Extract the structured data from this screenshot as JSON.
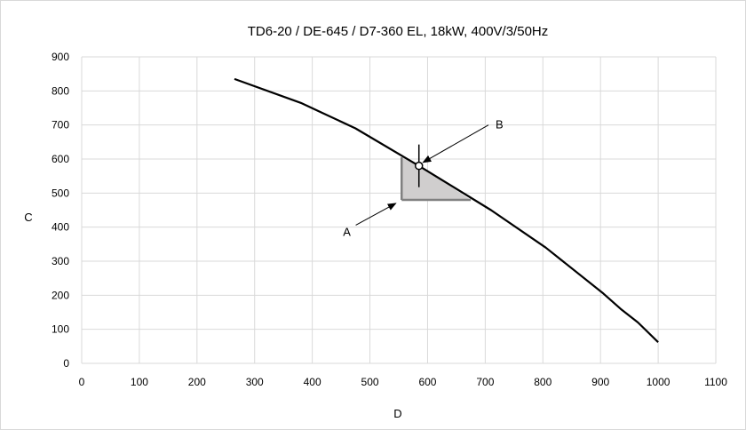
{
  "chart_data": {
    "type": "line",
    "title": "TD6-20 / DE-645 / D7-360 EL, 18kW, 400V/3/50Hz",
    "xlabel": "D",
    "ylabel": "C",
    "xlim": [
      0,
      1100
    ],
    "ylim": [
      0,
      900
    ],
    "xticks": [
      0,
      100,
      200,
      300,
      400,
      500,
      600,
      700,
      800,
      900,
      1000,
      1100
    ],
    "yticks": [
      0,
      100,
      200,
      300,
      400,
      500,
      600,
      700,
      800,
      900
    ],
    "grid": true,
    "series": [
      {
        "x": [
          265,
          380,
          475,
          585,
          710,
          805,
          905,
          935,
          965,
          1000
        ],
        "y": [
          835,
          765,
          690,
          580,
          450,
          340,
          205,
          160,
          120,
          62
        ]
      }
    ],
    "shaded_region": {
      "x": [
        555,
        555,
        585,
        675
      ],
      "y": [
        480,
        605,
        580,
        480
      ],
      "color": "#d0cece"
    },
    "operating_point": {
      "x": 585,
      "y": 580
    },
    "annotations": [
      {
        "label": "A",
        "text_at": [
          460,
          385
        ],
        "arrow_to": [
          545,
          470
        ]
      },
      {
        "label": "B",
        "text_at": [
          718,
          700
        ],
        "arrow_to": [
          592,
          590
        ]
      }
    ],
    "colors": {
      "line": "#000000",
      "grid": "#d9d9d9",
      "shade": "#d0cece",
      "shade_edge": "#808080"
    }
  }
}
